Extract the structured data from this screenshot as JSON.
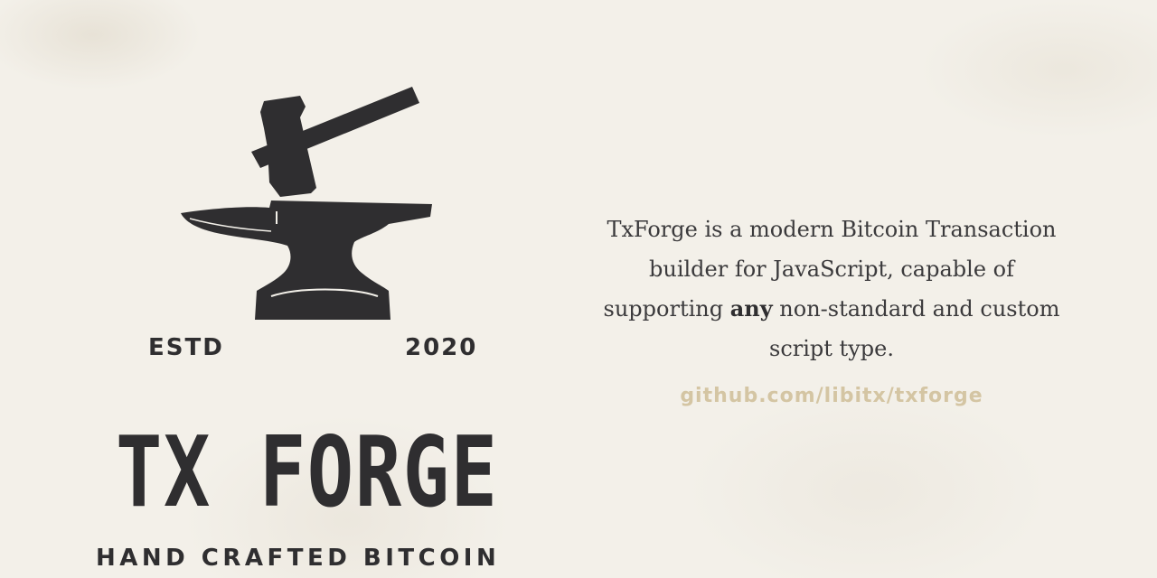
{
  "logo": {
    "icon": "anvil-and-hammer-icon",
    "estd": "ESTD",
    "year": "2020",
    "brand": "TX FORGE",
    "tagline": "HAND CRAFTED BITCOIN"
  },
  "description": {
    "before": "TxForge is a modern Bitcoin Transaction builder for JavaScript, capable of supporting ",
    "emphasis": "any",
    "after": " non-standard and custom script type."
  },
  "link": "github.com/libitx/txforge",
  "colors": {
    "background": "#f3f0e9",
    "ink": "#2f2e30",
    "link": "#d4c5a3"
  }
}
